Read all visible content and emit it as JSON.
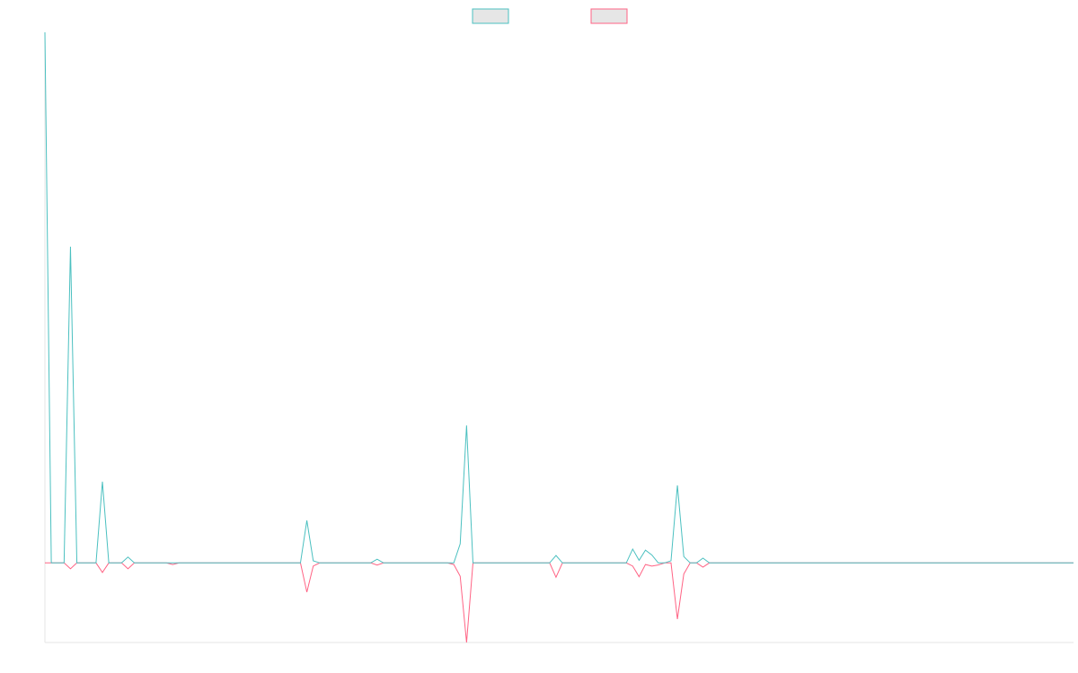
{
  "chart_data": {
    "type": "line",
    "ylim": [
      -15,
      100
    ],
    "legend": "top",
    "series": [
      {
        "color": "#4bc0c0",
        "values": [
          100,
          0,
          0,
          0,
          59.6,
          0,
          0,
          0,
          0,
          15.3,
          0,
          0,
          0,
          1.1,
          0,
          0,
          0,
          0,
          0,
          0,
          0,
          0,
          0,
          0,
          0,
          0,
          0,
          0,
          0,
          0,
          0,
          0,
          0,
          0,
          0,
          0,
          0,
          0,
          0,
          0,
          0,
          8,
          0.4,
          0,
          0,
          0,
          0,
          0,
          0,
          0,
          0,
          0,
          0.7,
          0,
          0,
          0,
          0,
          0,
          0,
          0,
          0,
          0,
          0,
          0,
          0,
          3.6,
          25.9,
          0,
          0,
          0,
          0,
          0,
          0,
          0,
          0,
          0,
          0,
          0,
          0,
          0,
          1.4,
          0,
          0,
          0,
          0,
          0,
          0,
          0,
          0,
          0,
          0,
          0,
          2.6,
          0.5,
          2.4,
          1.5,
          0,
          0,
          0.4,
          14.6,
          1.2,
          0,
          0,
          0.9,
          0,
          0,
          0,
          0,
          0,
          0,
          0,
          0,
          0,
          0,
          0,
          0,
          0,
          0,
          0,
          0,
          0,
          0,
          0,
          0,
          0,
          0,
          0,
          0,
          0,
          0,
          0,
          0,
          0,
          0,
          0,
          0,
          0,
          0,
          0,
          0,
          0,
          0,
          0,
          0,
          0,
          0,
          0,
          0,
          0,
          0,
          0,
          0,
          0,
          0,
          0,
          0,
          0,
          0,
          0,
          0,
          0,
          0
        ]
      },
      {
        "color": "#ff6384",
        "values": [
          0,
          0,
          0,
          0,
          -1.1,
          0,
          0,
          0,
          0,
          -1.8,
          0,
          0,
          0,
          -1.1,
          0,
          0,
          0,
          0,
          0,
          0,
          -0.3,
          0,
          0,
          0,
          0,
          0,
          0,
          0,
          0,
          0,
          0,
          0,
          0,
          0,
          0,
          0,
          0,
          0,
          0,
          0,
          0,
          -5.5,
          -0.6,
          0,
          0,
          0,
          0,
          0,
          0,
          0,
          0,
          0,
          -0.4,
          0,
          0,
          0,
          0,
          0,
          0,
          0,
          0,
          0,
          0,
          0,
          -0.3,
          -2.5,
          -15,
          0,
          0,
          0,
          0,
          0,
          0,
          0,
          0,
          0,
          0,
          0,
          0,
          0,
          -2.7,
          0,
          0,
          0,
          0,
          0,
          0,
          0,
          0,
          0,
          0,
          0,
          -0.6,
          -2.6,
          -0.3,
          -0.6,
          -0.4,
          0,
          0,
          -10.6,
          -2.1,
          0,
          0,
          -0.8,
          0,
          0,
          0,
          0,
          0,
          0,
          0,
          0,
          0,
          0,
          0,
          0,
          0,
          0,
          0,
          0,
          0,
          0,
          0,
          0,
          0,
          0,
          0,
          0,
          0,
          0,
          0,
          0,
          0,
          0,
          0,
          0,
          0,
          0,
          0,
          0,
          0,
          0,
          0,
          0,
          0,
          0,
          0,
          0,
          0,
          0,
          0,
          0,
          0,
          0,
          0,
          0,
          0,
          0,
          0,
          0,
          0,
          0
        ]
      }
    ]
  }
}
